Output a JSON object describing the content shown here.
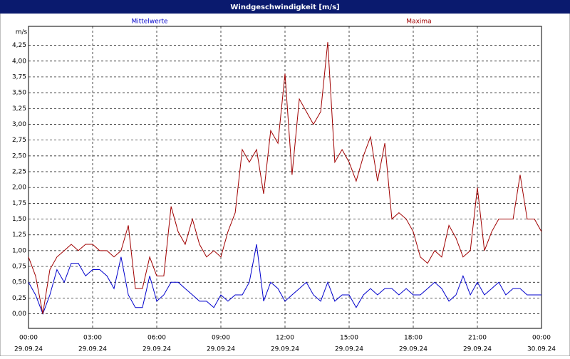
{
  "chart_data": {
    "type": "line",
    "title": "Windgeschwindigkeit [m/s]",
    "y_label": "m/s",
    "x": [
      0,
      0.33,
      0.67,
      1,
      1.33,
      1.67,
      2,
      2.33,
      2.67,
      3,
      3.33,
      3.67,
      4,
      4.33,
      4.67,
      5,
      5.33,
      5.67,
      6,
      6.33,
      6.67,
      7,
      7.33,
      7.67,
      8,
      8.33,
      8.67,
      9,
      9.33,
      9.67,
      10,
      10.33,
      10.67,
      11,
      11.33,
      11.67,
      12,
      12.33,
      12.67,
      13,
      13.33,
      13.67,
      14,
      14.33,
      14.67,
      15,
      15.33,
      15.67,
      16,
      16.33,
      16.67,
      17,
      17.33,
      17.67,
      18,
      18.33,
      18.67,
      19,
      19.33,
      19.67,
      20,
      20.33,
      20.67,
      21,
      21.33,
      21.67,
      22,
      22.33,
      22.67,
      23,
      23.33,
      23.67,
      24
    ],
    "series": [
      {
        "name": "Mittelwerte",
        "color": "#0000cc",
        "values": [
          0.5,
          0.3,
          0.0,
          0.3,
          0.7,
          0.5,
          0.8,
          0.8,
          0.6,
          0.7,
          0.7,
          0.6,
          0.4,
          0.9,
          0.3,
          0.1,
          0.1,
          0.6,
          0.2,
          0.3,
          0.5,
          0.5,
          0.4,
          0.3,
          0.2,
          0.2,
          0.1,
          0.3,
          0.2,
          0.3,
          0.3,
          0.5,
          1.1,
          0.2,
          0.5,
          0.4,
          0.2,
          0.3,
          0.4,
          0.5,
          0.3,
          0.2,
          0.5,
          0.2,
          0.3,
          0.3,
          0.1,
          0.3,
          0.4,
          0.3,
          0.4,
          0.4,
          0.3,
          0.4,
          0.3,
          0.3,
          0.4,
          0.5,
          0.4,
          0.2,
          0.3,
          0.6,
          0.3,
          0.5,
          0.3,
          0.4,
          0.5,
          0.3,
          0.4,
          0.4,
          0.3,
          0.3,
          0.3
        ]
      },
      {
        "name": "Maxima",
        "color": "#a00000",
        "values": [
          0.9,
          0.6,
          0.0,
          0.7,
          0.9,
          1.0,
          1.1,
          1.0,
          1.1,
          1.1,
          1.0,
          1.0,
          0.9,
          1.0,
          1.4,
          0.4,
          0.4,
          0.9,
          0.6,
          0.6,
          1.7,
          1.3,
          1.1,
          1.5,
          1.1,
          0.9,
          1.0,
          0.9,
          1.3,
          1.6,
          2.6,
          2.4,
          2.6,
          1.9,
          2.9,
          2.7,
          3.8,
          2.2,
          3.4,
          3.2,
          3.0,
          3.2,
          4.3,
          2.4,
          2.6,
          2.4,
          2.1,
          2.5,
          2.8,
          2.1,
          2.7,
          1.5,
          1.6,
          1.5,
          1.3,
          0.9,
          0.8,
          1.0,
          0.9,
          1.4,
          1.2,
          0.9,
          1.0,
          2.0,
          1.0,
          1.3,
          1.5,
          1.5,
          1.5,
          2.2,
          1.5,
          1.5,
          1.3
        ]
      }
    ],
    "xlim": [
      0,
      24
    ],
    "xticks": [
      {
        "value": 0,
        "label": "00:00",
        "date": "29.09.24"
      },
      {
        "value": 3,
        "label": "03:00",
        "date": "29.09.24"
      },
      {
        "value": 6,
        "label": "06:00",
        "date": "29.09.24"
      },
      {
        "value": 9,
        "label": "09:00",
        "date": "29.09.24"
      },
      {
        "value": 12,
        "label": "12:00",
        "date": "29.09.24"
      },
      {
        "value": 15,
        "label": "15:00",
        "date": "29.09.24"
      },
      {
        "value": 18,
        "label": "18:00",
        "date": "29.09.24"
      },
      {
        "value": 21,
        "label": "21:00",
        "date": "29.09.24"
      },
      {
        "value": 24,
        "label": "00:00",
        "date": "30.09.24"
      }
    ],
    "ylim": [
      -0.23,
      4.55
    ],
    "yticks": [
      {
        "value": 0,
        "label": "0,00"
      },
      {
        "value": 0.25,
        "label": "0,25"
      },
      {
        "value": 0.5,
        "label": "0,50"
      },
      {
        "value": 0.75,
        "label": "0,75"
      },
      {
        "value": 1,
        "label": "1,00"
      },
      {
        "value": 1.25,
        "label": "1,25"
      },
      {
        "value": 1.5,
        "label": "1,50"
      },
      {
        "value": 1.75,
        "label": "1,75"
      },
      {
        "value": 2,
        "label": "2,00"
      },
      {
        "value": 2.25,
        "label": "2,25"
      },
      {
        "value": 2.5,
        "label": "2,50"
      },
      {
        "value": 2.75,
        "label": "2,75"
      },
      {
        "value": 3,
        "label": "3,00"
      },
      {
        "value": 3.25,
        "label": "3,25"
      },
      {
        "value": 3.5,
        "label": "3,50"
      },
      {
        "value": 3.75,
        "label": "3,75"
      },
      {
        "value": 4,
        "label": "4,00"
      },
      {
        "value": 4.25,
        "label": "4,25"
      }
    ],
    "grid": true
  }
}
